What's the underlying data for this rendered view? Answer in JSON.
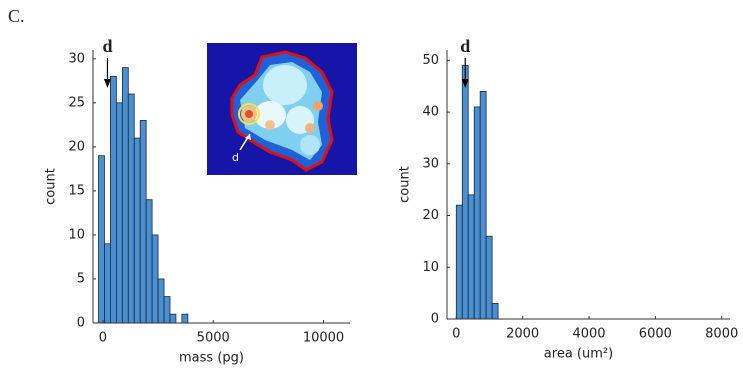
{
  "panel_label": "C.",
  "chart_data": [
    {
      "type": "histogram",
      "annotation": "d",
      "inset_label": "d",
      "xlabel": "mass (pg)",
      "ylabel": "count",
      "bins": [
        -200,
        70,
        340,
        610,
        880,
        1150,
        1420,
        1690,
        1960,
        2230,
        2500,
        2770,
        3040,
        3310,
        3580,
        3850
      ],
      "values": [
        19,
        9,
        28,
        25,
        29,
        26,
        21,
        23,
        14,
        10,
        5,
        3,
        1,
        0,
        1
      ],
      "color": "#4a8fcf",
      "xlim": [
        -450,
        11200
      ],
      "ylim": [
        0,
        31
      ],
      "xticks": [
        0,
        5000,
        10000
      ],
      "yticks": [
        0,
        5,
        10,
        15,
        20,
        25,
        30
      ]
    },
    {
      "type": "histogram",
      "annotation": "d",
      "xlabel": "area (um²)",
      "ylabel": "count",
      "bins": [
        0,
        180,
        360,
        540,
        720,
        900,
        1080,
        1260
      ],
      "values": [
        22,
        49,
        24,
        41,
        44,
        16,
        3
      ],
      "color": "#4a8fcf",
      "xlim": [
        -280,
        8250
      ],
      "ylim": [
        0,
        52
      ],
      "xticks": [
        0,
        2000,
        4000,
        6000,
        8000
      ],
      "yticks": [
        0,
        10,
        20,
        30,
        40,
        50
      ]
    }
  ]
}
